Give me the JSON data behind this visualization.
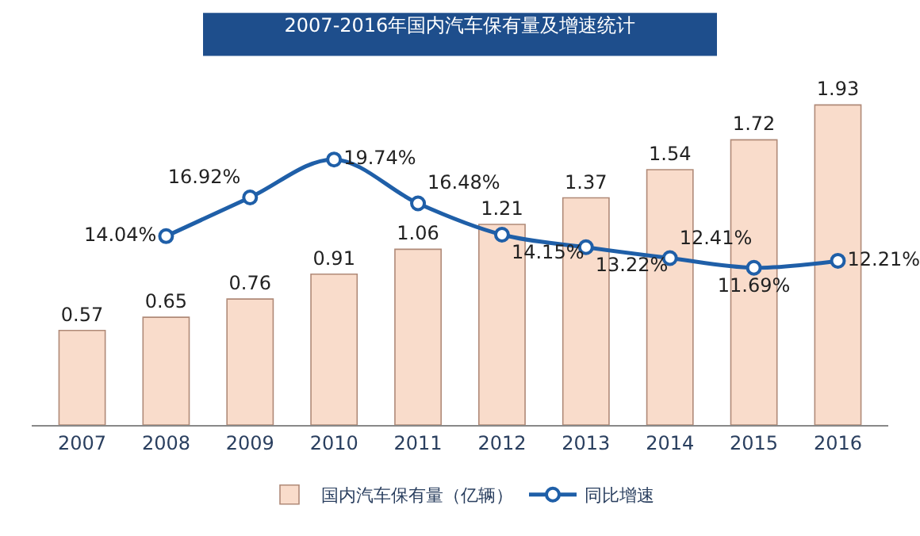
{
  "chart_data": {
    "type": "bar",
    "title": "2007-2016年国内汽车保有量及增速统计",
    "categories": [
      "2007",
      "2008",
      "2009",
      "2010",
      "2011",
      "2012",
      "2013",
      "2014",
      "2015",
      "2016"
    ],
    "series": [
      {
        "name": "国内汽车保有量（亿辆）",
        "color": "#f9dccb",
        "values": [
          0.57,
          0.65,
          0.76,
          0.91,
          1.06,
          1.21,
          1.37,
          1.54,
          1.72,
          1.93
        ]
      },
      {
        "name": "同比增速",
        "type": "line",
        "axis": "y2",
        "color": "#1f5fa8",
        "marker": "circle",
        "values": [
          null,
          14.04,
          16.92,
          19.74,
          16.48,
          14.15,
          13.22,
          12.41,
          11.69,
          12.21
        ],
        "value_labels": [
          null,
          "14.04%",
          "16.92%",
          "19.74%",
          "16.48%",
          "14.15%",
          "13.22%",
          "12.41%",
          "11.69%",
          "12.21%"
        ]
      }
    ],
    "data_labels": true,
    "legend": "bottom"
  }
}
